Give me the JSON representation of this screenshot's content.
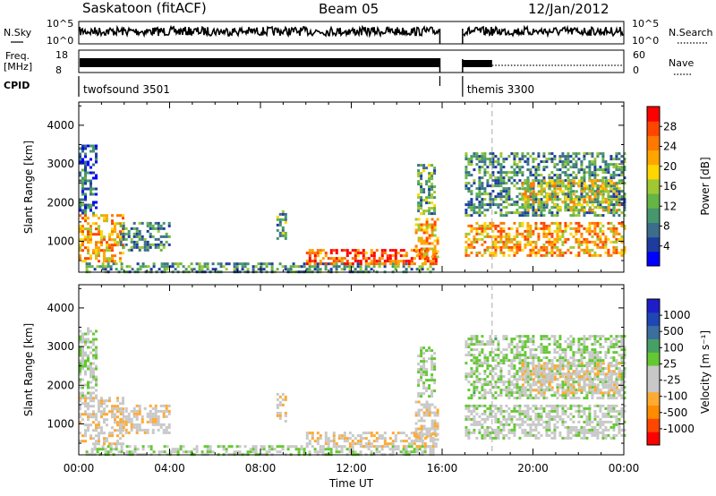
{
  "header": {
    "station": "Saskatoon (fitACF)",
    "beam": "Beam 05",
    "date": "12/Jan/2012"
  },
  "strip_labels": {
    "nsky": "N.Sky",
    "freq_line1": "Freq.",
    "freq_line2": "[MHz]",
    "cpid": "CPID",
    "nsearch": "N.Search",
    "nave": "Nave",
    "nsky_ticks": [
      "10^5",
      "10^0"
    ],
    "freq_ticks": [
      "18",
      "8"
    ],
    "nave_ticks": [
      "60",
      "0"
    ]
  },
  "cpid_segments": [
    {
      "label": "twofsound 3501",
      "start_hour": 0,
      "end_hour": 15.9
    },
    {
      "label": "themis 3300",
      "start_hour": 16.9,
      "end_hour": 24
    }
  ],
  "colors": {
    "power": [
      "#0000ff",
      "#1e3ca0",
      "#3c6e8c",
      "#46966e",
      "#64b446",
      "#a0c832",
      "#ffd700",
      "#ffa500",
      "#ff7800",
      "#ff4600",
      "#ff0000"
    ],
    "velocity": [
      "#ff0000",
      "#ff4600",
      "#ff8c00",
      "#ffaa32",
      "#c8c8c8",
      "#c8c8c8",
      "#64c832",
      "#46a064",
      "#3c6ea0",
      "#1e46b4",
      "#1e1ec8"
    ]
  },
  "chart_data": [
    {
      "type": "heatmap",
      "panel": "power",
      "ylabel": "Slant Range [km]",
      "ylim": [
        200,
        4600
      ],
      "yticks": [
        "1000",
        "2000",
        "3000",
        "4000"
      ],
      "xlim": [
        0,
        24
      ],
      "colorbar_label": "Power [dB]",
      "colorbar_ticks": [
        "4",
        "8",
        "12",
        "16",
        "20",
        "24",
        "28"
      ],
      "colorbar_range": [
        0,
        32
      ],
      "regions": [
        {
          "t0": 0.0,
          "t1": 1.9,
          "r0": 500,
          "r1": 1700,
          "value": 22
        },
        {
          "t0": 0.0,
          "t1": 0.8,
          "r0": 1700,
          "r1": 3500,
          "value": 6
        },
        {
          "t0": 1.8,
          "t1": 4.0,
          "r0": 800,
          "r1": 1500,
          "value": 10
        },
        {
          "t0": 0.3,
          "t1": 15.6,
          "r0": 220,
          "r1": 450,
          "value": 10
        },
        {
          "t0": 8.7,
          "t1": 9.1,
          "r0": 1100,
          "r1": 1800,
          "value": 12
        },
        {
          "t0": 10.0,
          "t1": 15.7,
          "r0": 400,
          "r1": 800,
          "value": 27
        },
        {
          "t0": 14.8,
          "t1": 15.8,
          "r0": 600,
          "r1": 1600,
          "value": 22
        },
        {
          "t0": 14.9,
          "t1": 15.7,
          "r0": 1700,
          "r1": 3000,
          "value": 12
        },
        {
          "t0": 17.0,
          "t1": 24.0,
          "r0": 600,
          "r1": 1500,
          "value": 22
        },
        {
          "t0": 17.0,
          "t1": 24.0,
          "r0": 1700,
          "r1": 3300,
          "value": 10
        },
        {
          "t0": 19.5,
          "t1": 23.8,
          "r0": 1800,
          "r1": 2600,
          "value": 18
        }
      ]
    },
    {
      "type": "heatmap",
      "panel": "velocity",
      "ylabel": "Slant Range [km]",
      "ylim": [
        200,
        4600
      ],
      "yticks": [
        "1000",
        "2000",
        "3000",
        "4000"
      ],
      "xlim": [
        0,
        24
      ],
      "xticks": [
        "00:00",
        "04:00",
        "08:00",
        "12:00",
        "16:00",
        "20:00",
        "00:00"
      ],
      "xlabel": "Time UT",
      "colorbar_label": "Velocity [m s⁻¹]",
      "colorbar_ticks": [
        "-1000",
        "-500",
        "-100",
        "-25",
        "25",
        "100",
        "500",
        "1000"
      ],
      "colorbar_range": [
        -1200,
        1200
      ],
      "regions": [
        {
          "t0": 0.0,
          "t1": 1.9,
          "r0": 500,
          "r1": 1700,
          "value": -200
        },
        {
          "t0": 0.0,
          "t1": 0.8,
          "r0": 1700,
          "r1": 3500,
          "value": 60
        },
        {
          "t0": 1.8,
          "t1": 4.0,
          "r0": 800,
          "r1": 1500,
          "value": -200
        },
        {
          "t0": 0.3,
          "t1": 15.6,
          "r0": 220,
          "r1": 450,
          "value": 60
        },
        {
          "t0": 8.7,
          "t1": 9.1,
          "r0": 1100,
          "r1": 1800,
          "value": -200
        },
        {
          "t0": 10.0,
          "t1": 15.7,
          "r0": 400,
          "r1": 800,
          "value": -300
        },
        {
          "t0": 14.8,
          "t1": 15.8,
          "r0": 600,
          "r1": 1600,
          "value": -200
        },
        {
          "t0": 14.9,
          "t1": 15.7,
          "r0": 1700,
          "r1": 3000,
          "value": 60
        },
        {
          "t0": 17.0,
          "t1": 24.0,
          "r0": 600,
          "r1": 1500,
          "value": 0
        },
        {
          "t0": 17.0,
          "t1": 24.0,
          "r0": 1700,
          "r1": 3300,
          "value": 80
        },
        {
          "t0": 19.5,
          "t1": 23.8,
          "r0": 1800,
          "r1": 2600,
          "value": -250
        }
      ]
    }
  ]
}
